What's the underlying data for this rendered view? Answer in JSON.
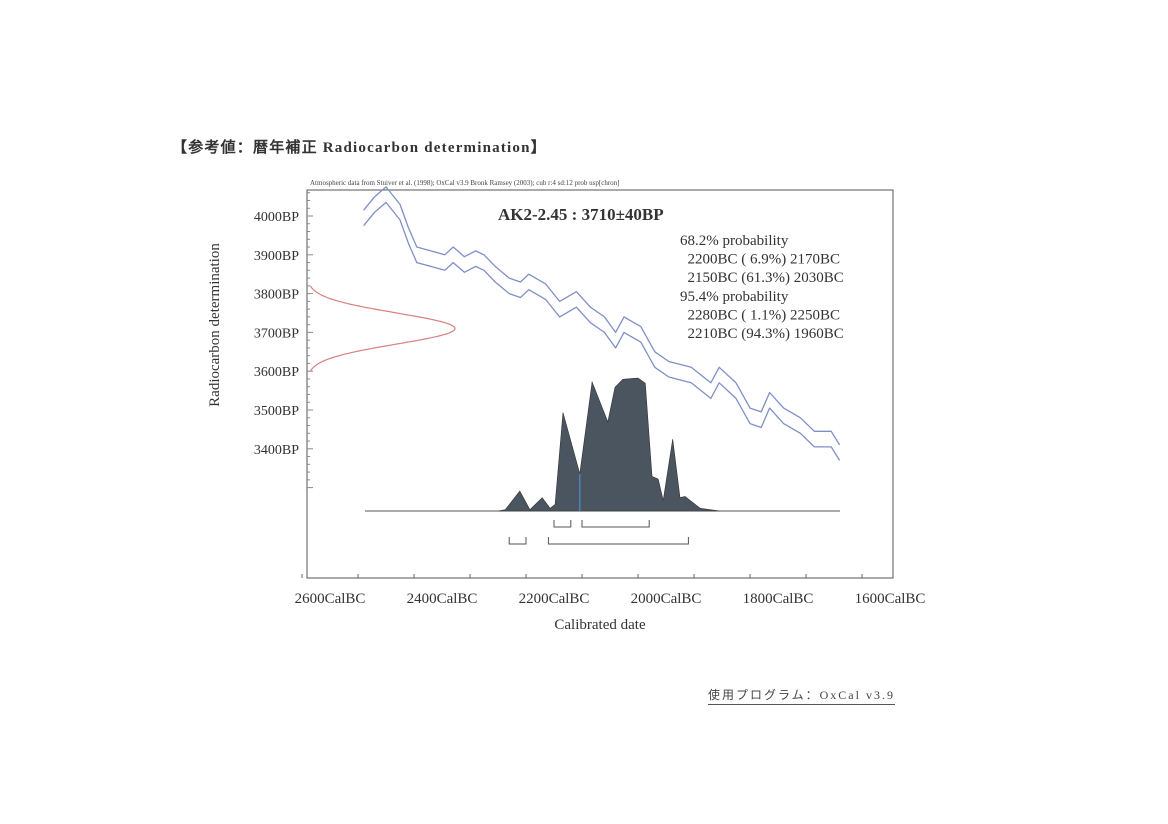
{
  "page": {
    "title": "【参考値：暦年補正 Radiocarbon determination】",
    "footer": "使用プログラム：OxCal  v3.9"
  },
  "chart_data": {
    "type": "area",
    "title": "AK2-2.45 : 3710±40BP",
    "subtitle": "Atmospheric data from Stuiver et al. (1998); OxCal v3.9 Bronk Ramsey (2003); cub r:4 sd:12 prob usp[chron]",
    "xlabel": "Calibrated date",
    "ylabel": "Radiocarbon determination",
    "xlim": [
      2600,
      1600
    ],
    "ylim": [
      3300,
      4065
    ],
    "x_ticks": [
      {
        "value": 2600,
        "label": "2600CalBC"
      },
      {
        "value": 2400,
        "label": "2400CalBC"
      },
      {
        "value": 2200,
        "label": "2200CalBC"
      },
      {
        "value": 2000,
        "label": "2000CalBC"
      },
      {
        "value": 1800,
        "label": "1800CalBC"
      },
      {
        "value": 1600,
        "label": "1600CalBC"
      }
    ],
    "y_ticks": [
      {
        "value": 4000,
        "label": "4000BP"
      },
      {
        "value": 3900,
        "label": "3900BP"
      },
      {
        "value": 3800,
        "label": "3800BP"
      },
      {
        "value": 3700,
        "label": "3700BP"
      },
      {
        "value": 3600,
        "label": "3600BP"
      },
      {
        "value": 3500,
        "label": "3500BP"
      },
      {
        "value": 3400,
        "label": "3400BP"
      }
    ],
    "legend": {
      "lines": [
        "68.2% probability",
        "  2200BC ( 6.9%) 2170BC",
        "  2150BC (61.3%) 2030BC",
        "95.4% probability",
        "  2280BC ( 1.1%) 2250BC",
        "  2210BC (94.3%) 1960BC"
      ],
      "placement": "top-right"
    },
    "radiocarbon_date": {
      "mean": 3710,
      "sigma": 40,
      "color": "#d98080"
    },
    "calibration_curve": {
      "color": "#7f8fc8",
      "band_halfwidth": 20,
      "points": [
        [
          2540,
          3995
        ],
        [
          2520,
          4030
        ],
        [
          2500,
          4055
        ],
        [
          2475,
          4010
        ],
        [
          2460,
          3950
        ],
        [
          2445,
          3900
        ],
        [
          2420,
          3890
        ],
        [
          2395,
          3880
        ],
        [
          2380,
          3900
        ],
        [
          2360,
          3875
        ],
        [
          2340,
          3890
        ],
        [
          2325,
          3880
        ],
        [
          2305,
          3850
        ],
        [
          2280,
          3820
        ],
        [
          2260,
          3810
        ],
        [
          2245,
          3830
        ],
        [
          2215,
          3805
        ],
        [
          2190,
          3760
        ],
        [
          2160,
          3785
        ],
        [
          2135,
          3745
        ],
        [
          2110,
          3720
        ],
        [
          2090,
          3680
        ],
        [
          2075,
          3720
        ],
        [
          2045,
          3695
        ],
        [
          2020,
          3630
        ],
        [
          1995,
          3605
        ],
        [
          1955,
          3590
        ],
        [
          1920,
          3550
        ],
        [
          1905,
          3590
        ],
        [
          1875,
          3550
        ],
        [
          1850,
          3485
        ],
        [
          1830,
          3475
        ],
        [
          1815,
          3525
        ],
        [
          1790,
          3485
        ],
        [
          1760,
          3460
        ],
        [
          1735,
          3425
        ],
        [
          1705,
          3425
        ],
        [
          1690,
          3390
        ]
      ]
    },
    "probability_distribution": {
      "color": "#4a5560",
      "points": [
        [
          2300,
          0
        ],
        [
          2287,
          0.01
        ],
        [
          2261,
          0.15
        ],
        [
          2243,
          0.01
        ],
        [
          2221,
          0.1
        ],
        [
          2207,
          0.02
        ],
        [
          2198,
          0.05
        ],
        [
          2184,
          0.74
        ],
        [
          2154,
          0.28
        ],
        [
          2132,
          0.97
        ],
        [
          2104,
          0.67
        ],
        [
          2091,
          0.93
        ],
        [
          2077,
          0.99
        ],
        [
          2050,
          1.0
        ],
        [
          2037,
          0.96
        ],
        [
          2025,
          0.26
        ],
        [
          2014,
          0.24
        ],
        [
          2005,
          0.08
        ],
        [
          1988,
          0.54
        ],
        [
          1975,
          0.1
        ],
        [
          1966,
          0.11
        ],
        [
          1939,
          0.02
        ],
        [
          1921,
          0.01
        ],
        [
          1904,
          0
        ]
      ],
      "median": 2154,
      "median_color": "#4a7fc0"
    },
    "ranges_68": [
      [
        2200,
        2170
      ],
      [
        2150,
        2030
      ]
    ],
    "ranges_95": [
      [
        2280,
        2250
      ],
      [
        2210,
        1960
      ]
    ]
  }
}
